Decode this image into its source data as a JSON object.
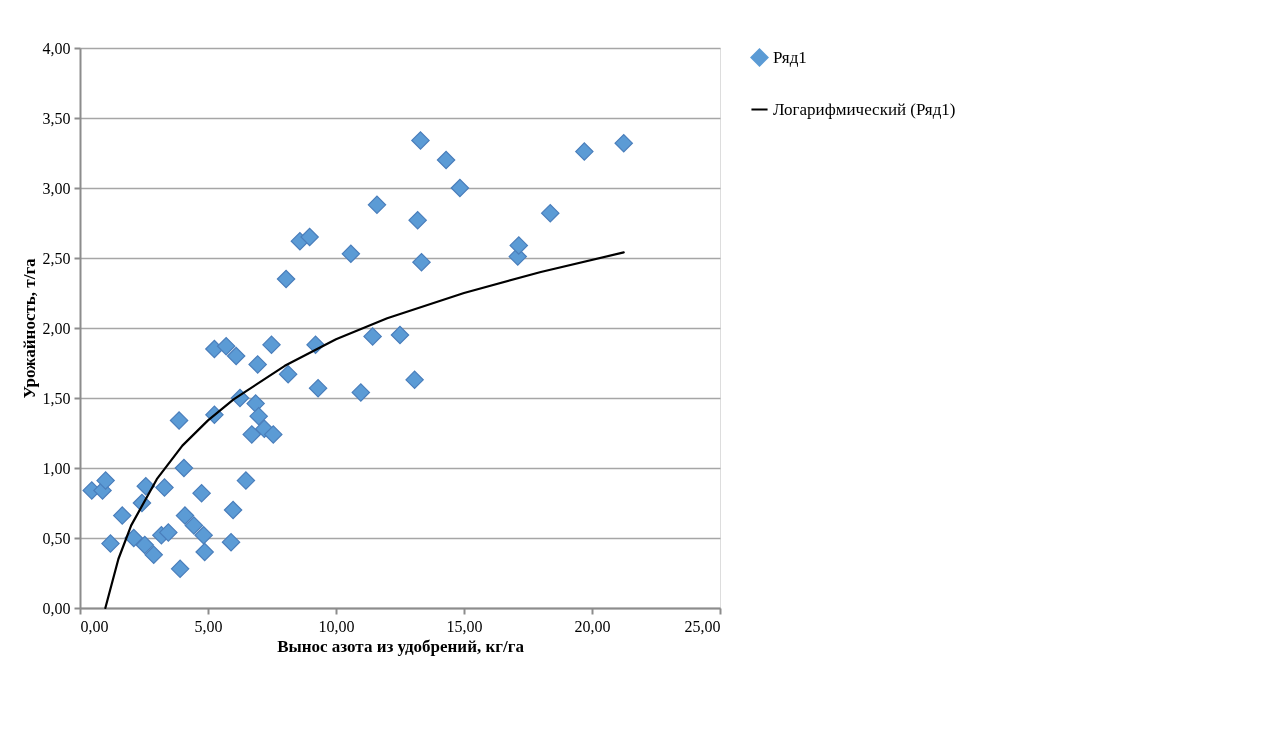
{
  "chart_data": {
    "type": "scatter",
    "xlabel": "Вынос азота из удобрений, кг/га",
    "ylabel": "Урожайность, т/га",
    "xlim": [
      0,
      25
    ],
    "xticks": [
      {
        "value": 0,
        "label": "0,00"
      },
      {
        "value": 5,
        "label": "5,00"
      },
      {
        "value": 10,
        "label": "10,00"
      },
      {
        "value": 15,
        "label": "15,00"
      },
      {
        "value": 20,
        "label": "20,00"
      },
      {
        "value": 25,
        "label": "25,00"
      }
    ],
    "ylim": [
      0,
      4
    ],
    "yticks": [
      {
        "value": 0,
        "label": "0,00"
      },
      {
        "value": 0.5,
        "label": "0,50"
      },
      {
        "value": 1,
        "label": "1,00"
      },
      {
        "value": 1.5,
        "label": "1,50"
      },
      {
        "value": 2,
        "label": "2,00"
      },
      {
        "value": 2.5,
        "label": "2,50"
      },
      {
        "value": 3,
        "label": "3,00"
      },
      {
        "value": 3.5,
        "label": "3,50"
      },
      {
        "value": 4,
        "label": "4,00"
      }
    ],
    "grid": "y",
    "legend": "right",
    "series": [
      {
        "name": "Ряд1",
        "marker": "diamond",
        "color": "#5b9bd5",
        "x": [
          0.46,
          0.88,
          1.0,
          1.19,
          1.65,
          2.1,
          2.42,
          2.57,
          2.53,
          2.88,
          3.18,
          3.3,
          3.45,
          3.87,
          3.91,
          4.06,
          4.1,
          4.45,
          4.75,
          4.83,
          4.87,
          5.25,
          5.25,
          5.71,
          5.9,
          5.98,
          6.1,
          6.25,
          6.48,
          6.71,
          6.86,
          6.94,
          6.98,
          7.2,
          7.55,
          7.48,
          8.05,
          8.13,
          8.59,
          8.97,
          9.2,
          9.3,
          10.58,
          10.97,
          11.43,
          11.6,
          12.5,
          13.07,
          13.19,
          13.3,
          13.34,
          14.3,
          14.84,
          17.1,
          17.14,
          18.37,
          19.7,
          21.24
        ],
        "values": [
          0.84,
          0.84,
          0.91,
          0.46,
          0.66,
          0.5,
          0.75,
          0.87,
          0.45,
          0.38,
          0.52,
          0.86,
          0.54,
          1.34,
          0.28,
          1.0,
          0.66,
          0.59,
          0.82,
          0.52,
          0.4,
          1.38,
          1.85,
          1.87,
          0.47,
          0.7,
          1.8,
          1.5,
          0.91,
          1.24,
          1.46,
          1.74,
          1.37,
          1.28,
          1.24,
          1.88,
          2.35,
          1.67,
          2.62,
          2.65,
          1.88,
          1.57,
          2.53,
          1.54,
          1.94,
          2.88,
          1.95,
          1.63,
          2.77,
          3.34,
          2.47,
          3.2,
          3.0,
          2.51,
          2.59,
          2.82,
          3.26,
          3.32
        ]
      },
      {
        "name": "Логарифмический (Ряд1)",
        "type": "line",
        "line_style": "solid",
        "color": "#000000",
        "x": [
          0.99,
          1.5,
          2,
          3,
          4,
          5,
          6,
          8,
          10,
          12,
          15,
          18,
          21.24
        ],
        "values": [
          0,
          0.35,
          0.59,
          0.92,
          1.16,
          1.34,
          1.49,
          1.73,
          1.92,
          2.07,
          2.25,
          2.4,
          2.54
        ]
      }
    ]
  }
}
